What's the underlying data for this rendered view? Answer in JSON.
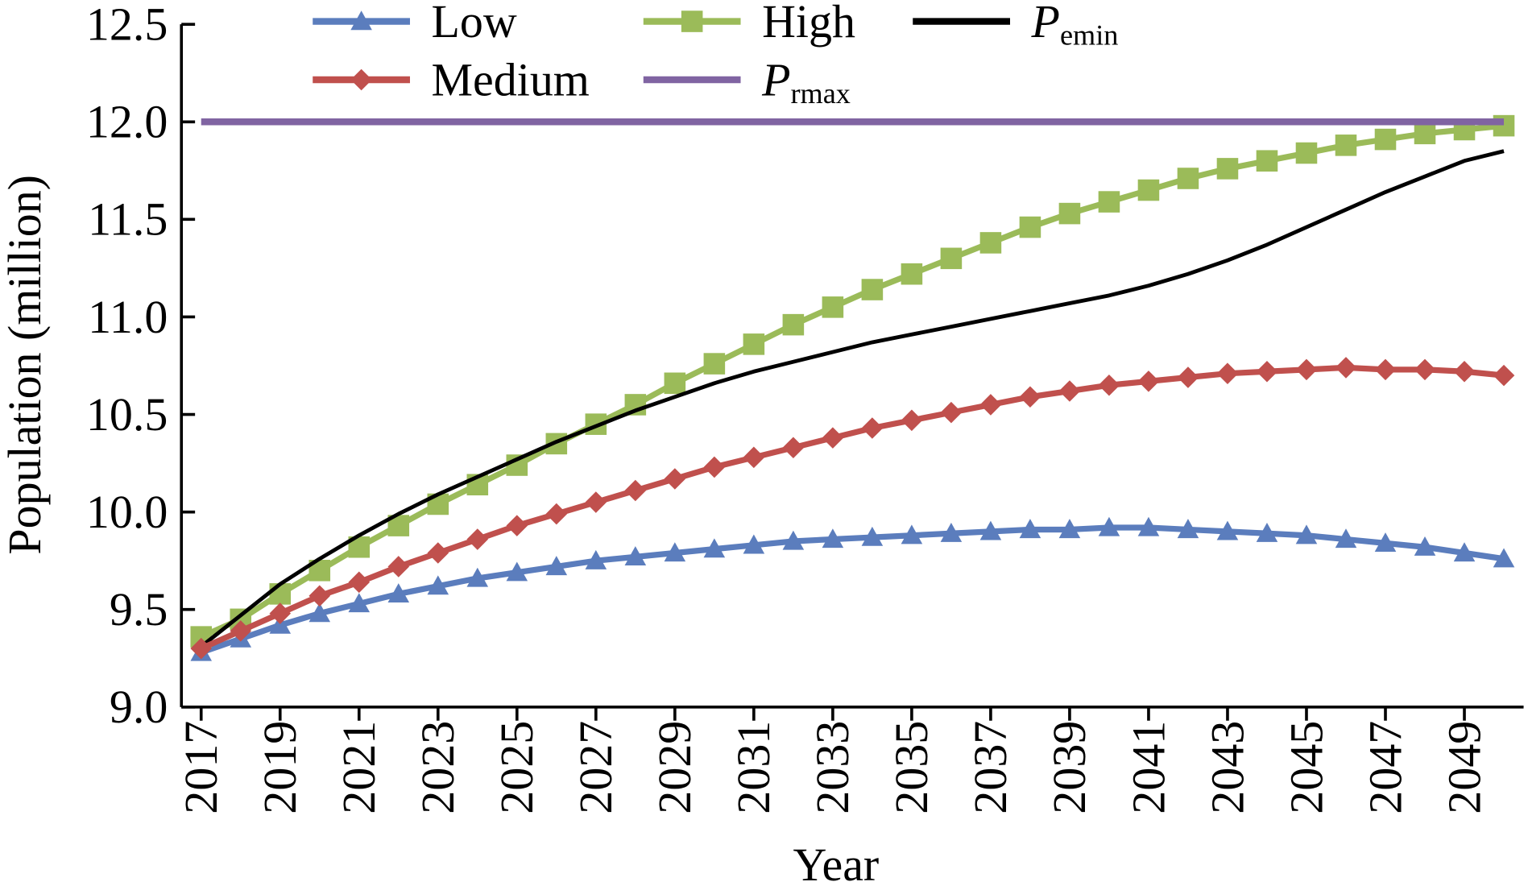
{
  "chart_data": {
    "type": "line",
    "x": [
      2017,
      2018,
      2019,
      2020,
      2021,
      2022,
      2023,
      2024,
      2025,
      2026,
      2027,
      2028,
      2029,
      2030,
      2031,
      2032,
      2033,
      2034,
      2035,
      2036,
      2037,
      2038,
      2039,
      2040,
      2041,
      2042,
      2043,
      2044,
      2045,
      2046,
      2047,
      2048,
      2049,
      2050
    ],
    "xlabel": "Year",
    "ylabel": "Population (million)",
    "xlim": [
      2016.5,
      2050.5
    ],
    "xticks": [
      2017,
      2019,
      2021,
      2023,
      2025,
      2027,
      2029,
      2031,
      2033,
      2035,
      2037,
      2039,
      2041,
      2043,
      2045,
      2047,
      2049
    ],
    "ylim": [
      9.0,
      12.5
    ],
    "yticks": [
      {
        "value": 9.0,
        "label": "9.0"
      },
      9.5,
      {
        "value": 10.0,
        "label": "10.0"
      },
      10.5,
      {
        "value": 11.0,
        "label": "11.0"
      },
      11.5,
      {
        "value": 12.0,
        "label": "12.0"
      },
      12.5
    ],
    "series": [
      {
        "name": "Low",
        "color": "#5b7dbd",
        "marker": "triangle",
        "values": [
          9.28,
          9.35,
          9.42,
          9.48,
          9.53,
          9.58,
          9.62,
          9.66,
          9.69,
          9.72,
          9.75,
          9.77,
          9.79,
          9.81,
          9.83,
          9.85,
          9.86,
          9.87,
          9.88,
          9.89,
          9.9,
          9.91,
          9.91,
          9.92,
          9.92,
          9.91,
          9.9,
          9.89,
          9.88,
          9.86,
          9.84,
          9.82,
          9.79,
          9.76
        ]
      },
      {
        "name": "High",
        "color": "#9bbb59",
        "marker": "square",
        "values": [
          9.36,
          9.45,
          9.58,
          9.7,
          9.82,
          9.93,
          10.04,
          10.14,
          10.24,
          10.35,
          10.45,
          10.55,
          10.66,
          10.76,
          10.86,
          10.96,
          11.05,
          11.14,
          11.22,
          11.3,
          11.38,
          11.46,
          11.53,
          11.59,
          11.65,
          11.71,
          11.76,
          11.8,
          11.84,
          11.88,
          11.91,
          11.94,
          11.96,
          11.98
        ]
      },
      {
        "name": "Pemin",
        "color": "#000000",
        "values": [
          9.31,
          9.47,
          9.63,
          9.76,
          9.88,
          9.99,
          10.09,
          10.18,
          10.27,
          10.36,
          10.44,
          10.52,
          10.59,
          10.66,
          10.72,
          10.77,
          10.82,
          10.87,
          10.91,
          10.95,
          10.99,
          11.03,
          11.07,
          11.11,
          11.16,
          11.22,
          11.29,
          11.37,
          11.46,
          11.55,
          11.64,
          11.72,
          11.8,
          11.85
        ]
      },
      {
        "name": "Medium",
        "color": "#c0504d",
        "marker": "diamond",
        "values": [
          9.3,
          9.39,
          9.48,
          9.57,
          9.64,
          9.72,
          9.79,
          9.86,
          9.93,
          9.99,
          10.05,
          10.11,
          10.17,
          10.23,
          10.28,
          10.33,
          10.38,
          10.43,
          10.47,
          10.51,
          10.55,
          10.59,
          10.62,
          10.65,
          10.67,
          10.69,
          10.71,
          10.72,
          10.73,
          10.74,
          10.73,
          10.73,
          10.72,
          10.7
        ]
      },
      {
        "name": "Prmax",
        "color": "#8064a2",
        "values": [
          12,
          12,
          12,
          12,
          12,
          12,
          12,
          12,
          12,
          12,
          12,
          12,
          12,
          12,
          12,
          12,
          12,
          12,
          12,
          12,
          12,
          12,
          12,
          12,
          12,
          12,
          12,
          12,
          12,
          12,
          12,
          12,
          12,
          12
        ]
      }
    ]
  }
}
